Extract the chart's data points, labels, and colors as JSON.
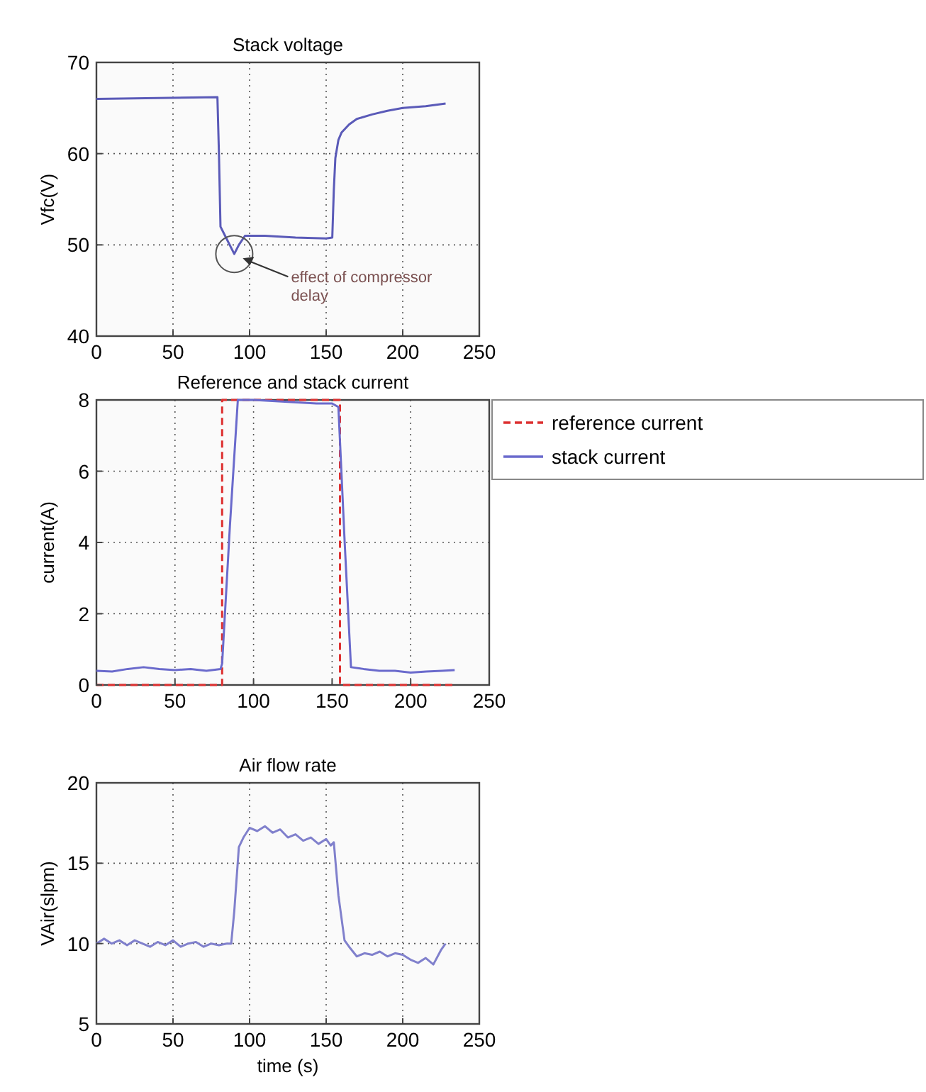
{
  "chart_data": [
    {
      "type": "line",
      "title": "Stack voltage",
      "ylabel": "Vfc(V)",
      "xlim": [
        0,
        250
      ],
      "ylim": [
        40,
        70
      ],
      "xticks": [
        0,
        50,
        100,
        150,
        200,
        250
      ],
      "yticks": [
        40,
        50,
        60,
        70
      ],
      "grid": true,
      "annotations": [
        {
          "text": "effect of compressor delay",
          "x": 90,
          "y": 49
        }
      ],
      "series": [
        {
          "color": "#5a5ab8",
          "x": [
            0,
            40,
            79,
            80,
            81,
            84,
            90,
            93,
            97,
            110,
            130,
            150,
            154,
            155,
            156,
            158,
            160,
            165,
            170,
            180,
            190,
            200,
            215,
            228
          ],
          "values": [
            66,
            66.1,
            66.2,
            60,
            52,
            51,
            49,
            50,
            51,
            51,
            50.8,
            50.7,
            50.8,
            56,
            59.5,
            61.5,
            62.3,
            63.2,
            63.8,
            64.3,
            64.7,
            65,
            65.2,
            65.5
          ]
        }
      ]
    },
    {
      "type": "line",
      "title": "Reference and stack current",
      "ylabel": "current(A)",
      "xlim": [
        0,
        250
      ],
      "ylim": [
        0,
        8
      ],
      "xticks": [
        0,
        50,
        100,
        150,
        200,
        250
      ],
      "yticks": [
        0,
        2,
        4,
        6,
        8
      ],
      "grid": true,
      "legend": "right",
      "series": [
        {
          "name": "reference current",
          "color": "#dd3030",
          "line_style": "dashed",
          "x": [
            0,
            80,
            80,
            155,
            155,
            228
          ],
          "values": [
            0,
            0,
            8,
            8,
            0,
            0
          ]
        },
        {
          "name": "stack current",
          "color": "#6a6acc",
          "line_style": "solid",
          "x": [
            0,
            10,
            20,
            30,
            40,
            50,
            60,
            70,
            79,
            80,
            85,
            90,
            100,
            120,
            140,
            150,
            154,
            158,
            162,
            170,
            180,
            190,
            200,
            210,
            220,
            228
          ],
          "values": [
            0.4,
            0.38,
            0.45,
            0.5,
            0.45,
            0.42,
            0.45,
            0.4,
            0.45,
            0.6,
            4.5,
            8,
            8,
            7.95,
            7.9,
            7.9,
            7.8,
            4,
            0.5,
            0.45,
            0.4,
            0.4,
            0.35,
            0.38,
            0.4,
            0.42
          ]
        }
      ]
    },
    {
      "type": "line",
      "title": "Air flow rate",
      "xlabel": "time (s)",
      "ylabel": "VAir(slpm)",
      "xlim": [
        0,
        250
      ],
      "ylim": [
        5,
        20
      ],
      "xticks": [
        0,
        50,
        100,
        150,
        200,
        250
      ],
      "yticks": [
        5,
        10,
        15,
        20
      ],
      "grid": true,
      "series": [
        {
          "color": "#8080cc",
          "x": [
            0,
            5,
            10,
            15,
            20,
            25,
            30,
            35,
            40,
            45,
            50,
            55,
            60,
            65,
            70,
            75,
            80,
            85,
            88,
            90,
            93,
            96,
            100,
            105,
            110,
            115,
            120,
            125,
            130,
            135,
            140,
            145,
            150,
            153,
            155,
            158,
            162,
            165,
            170,
            175,
            180,
            185,
            190,
            195,
            200,
            205,
            210,
            215,
            220,
            225,
            228
          ],
          "values": [
            10,
            10.3,
            10,
            10.2,
            9.9,
            10.2,
            10,
            9.8,
            10.1,
            9.9,
            10.2,
            9.8,
            10,
            10.1,
            9.8,
            10,
            9.9,
            10,
            10,
            12,
            16,
            16.6,
            17.2,
            17,
            17.3,
            16.9,
            17.1,
            16.6,
            16.8,
            16.4,
            16.6,
            16.2,
            16.5,
            16.1,
            16.3,
            13,
            10.2,
            9.8,
            9.2,
            9.4,
            9.3,
            9.5,
            9.2,
            9.4,
            9.3,
            9,
            8.8,
            9.1,
            8.7,
            9.6,
            10
          ]
        }
      ]
    }
  ]
}
